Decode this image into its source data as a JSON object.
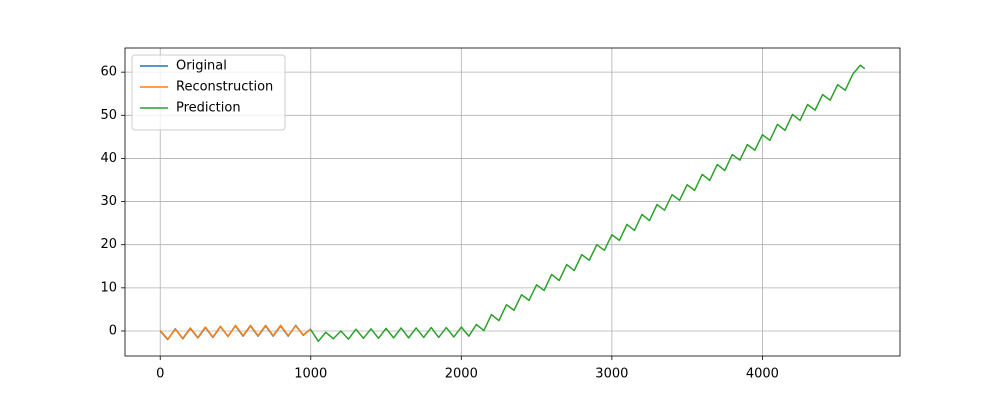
{
  "chart_data": {
    "type": "line",
    "series": [
      {
        "name": "Original",
        "color": "#1f77b4",
        "x": [
          0,
          50,
          100,
          150,
          200,
          250,
          300,
          350,
          400,
          450,
          500,
          550,
          600,
          650,
          700,
          750,
          800,
          850,
          900,
          950,
          1000
        ],
        "values": [
          0,
          -2,
          0.5,
          -1.8,
          0.6,
          -1.6,
          0.8,
          -1.5,
          1,
          -1.2,
          1.2,
          -1.2,
          1.2,
          -1.2,
          1.2,
          -1.2,
          1.2,
          -1.2,
          1.3,
          -1,
          0.5
        ]
      },
      {
        "name": "Reconstruction",
        "color": "#ff7f0e",
        "x": [
          0,
          50,
          100,
          150,
          200,
          250,
          300,
          350,
          400,
          450,
          500,
          550,
          600,
          650,
          700,
          750,
          800,
          850,
          900,
          950,
          1000
        ],
        "values": [
          0.1,
          -1.9,
          0.4,
          -1.7,
          0.7,
          -1.5,
          0.9,
          -1.4,
          1.1,
          -1.3,
          1.3,
          -1.1,
          1.3,
          -1.1,
          1.3,
          -1.1,
          1.3,
          -1.1,
          1.2,
          -0.9,
          0.4
        ]
      },
      {
        "name": "Prediction",
        "color": "#2ca02c",
        "x": [
          1000,
          1050,
          1100,
          1150,
          1200,
          1250,
          1300,
          1350,
          1400,
          1450,
          1500,
          1550,
          1600,
          1650,
          1700,
          1750,
          1800,
          1850,
          1900,
          1950,
          2000,
          2050,
          2100,
          2150,
          2200,
          2250,
          2300,
          2350,
          2400,
          2450,
          2500,
          2550,
          2600,
          2650,
          2700,
          2750,
          2800,
          2850,
          2900,
          2950,
          3000,
          3050,
          3100,
          3150,
          3200,
          3250,
          3300,
          3350,
          3400,
          3450,
          3500,
          3550,
          3600,
          3650,
          3700,
          3750,
          3800,
          3850,
          3900,
          3950,
          4000,
          4050,
          4100,
          4150,
          4200,
          4250,
          4300,
          4350,
          4400,
          4450,
          4500,
          4550,
          4600,
          4650,
          4680
        ],
        "values": [
          0.3,
          -2.4,
          -0.3,
          -1.8,
          0,
          -1.9,
          0.4,
          -1.7,
          0.5,
          -1.7,
          0.6,
          -1.6,
          0.7,
          -1.6,
          0.7,
          -1.5,
          0.8,
          -1.5,
          0.8,
          -1.4,
          0.9,
          -1.2,
          1.5,
          0.1,
          3.8,
          2.4,
          6.1,
          4.8,
          8.4,
          7.1,
          10.7,
          9.4,
          13.1,
          11.7,
          15.4,
          14,
          17.7,
          16.4,
          20,
          18.7,
          22.3,
          21,
          24.7,
          23.3,
          27,
          25.6,
          29.3,
          28,
          31.6,
          30.3,
          33.9,
          32.6,
          36.3,
          34.9,
          38.6,
          37.2,
          40.9,
          39.6,
          43.2,
          41.9,
          45.5,
          44.2,
          47.9,
          46.5,
          50.2,
          48.8,
          52.5,
          51.2,
          54.8,
          53.5,
          57.1,
          55.8,
          59.5,
          61.6,
          60.8
        ]
      }
    ],
    "xlim": [
      -234,
      4914
    ],
    "ylim": [
      -5.8,
      65.6
    ],
    "xticks": [
      0,
      1000,
      2000,
      3000,
      4000
    ],
    "yticks": [
      0,
      10,
      20,
      30,
      40,
      50,
      60
    ],
    "grid": true,
    "legend": "upper-left"
  }
}
